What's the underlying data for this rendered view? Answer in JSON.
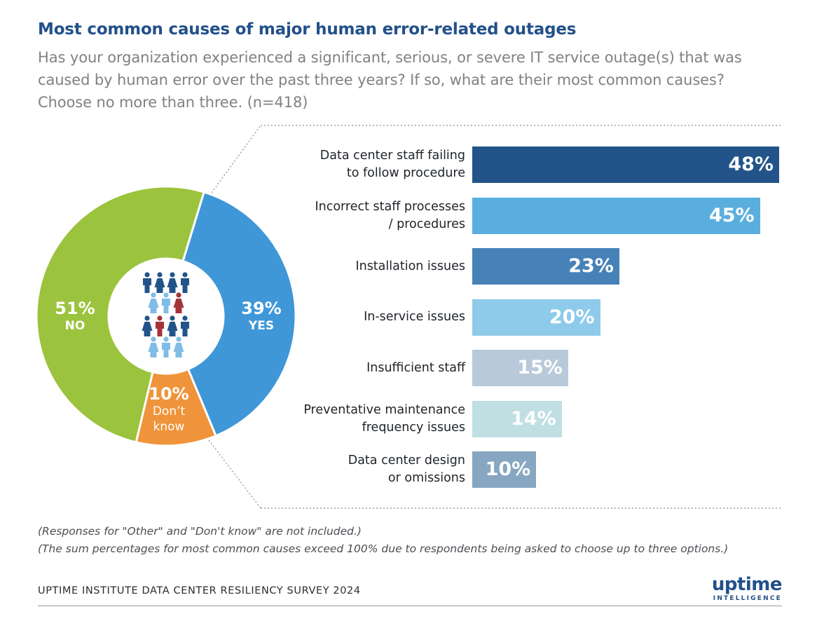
{
  "title": "Most common causes of major human error-related outages",
  "subtitle_lines": [
    "Has your organization experienced a significant, serious, or severe IT service outage(s) that was",
    "caused by human error over the past three years? If so, what are their most common causes?",
    "Choose no more than three. (n=418)"
  ],
  "chart_data": [
    {
      "type": "pie",
      "slices": [
        {
          "label": "YES",
          "value": 39,
          "display": "39%",
          "color": "#3f97d8"
        },
        {
          "label": "Don't know",
          "display_lines": [
            "Don’t",
            "know"
          ],
          "value": 10,
          "display": "10%",
          "color": "#ef943a"
        },
        {
          "label": "NO",
          "value": 51,
          "display": "51%",
          "color": "#9bc33d"
        }
      ],
      "center_icon": "people-icon"
    },
    {
      "type": "bar",
      "orientation": "horizontal",
      "categories": [
        "Data center staff failing to follow procedure",
        "Incorrect staff processes / procedures",
        "Installation issues",
        "In-service issues",
        "Insufficient staff",
        "Preventative maintenance frequency issues",
        "Data center design or omissions"
      ],
      "category_lines": [
        [
          "Data center staff failing",
          "to follow procedure"
        ],
        [
          "Incorrect staff processes",
          "/ procedures"
        ],
        [
          "Installation issues"
        ],
        [
          "In-service issues"
        ],
        [
          "Insufficient staff"
        ],
        [
          "Preventative maintenance",
          "frequency issues"
        ],
        [
          "Data center design",
          "or omissions"
        ]
      ],
      "values": [
        48,
        45,
        23,
        20,
        15,
        14,
        10
      ],
      "value_labels": [
        "48%",
        "45%",
        "23%",
        "20%",
        "15%",
        "14%",
        "10%"
      ],
      "colors": [
        "#22548a",
        "#5aaede",
        "#4682b8",
        "#8ecbea",
        "#b8c9d9",
        "#bfdfe3",
        "#87a6c1"
      ]
    }
  ],
  "notes": [
    "(Responses for \"Other\" and \"Don't know\" are not included.)",
    "(The sum percentages for most common causes exceed 100% due to respondents being asked to choose up to three options.)"
  ],
  "source": "UPTIME INSTITUTE DATA CENTER RESILIENCY SURVEY 2024",
  "logo": {
    "main": "uptime",
    "sub": "INTELLIGENCE"
  }
}
